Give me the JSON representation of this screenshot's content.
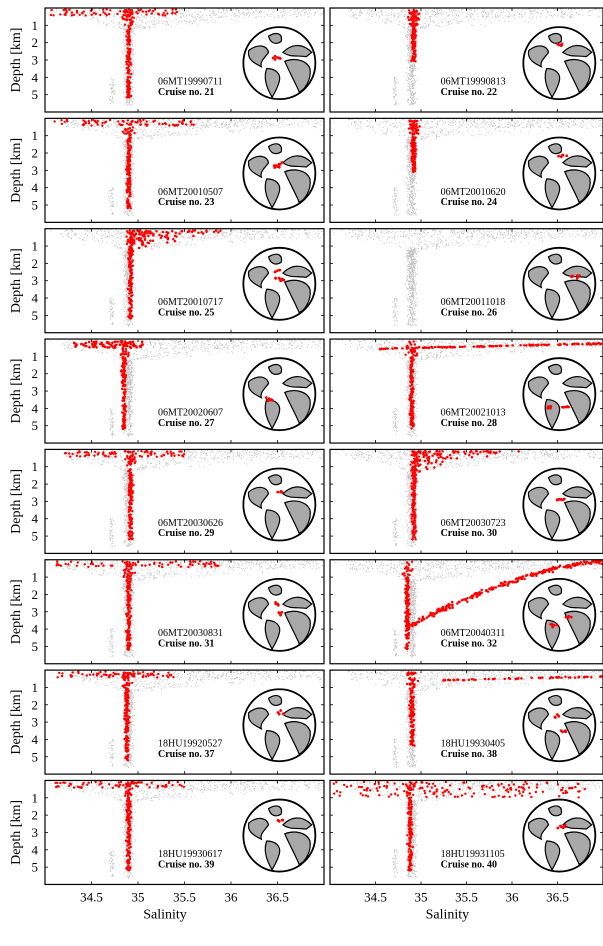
{
  "figure": {
    "xlabel": "Salinity",
    "ylabel": "Depth [km]",
    "x_ticks": [
      "34.5",
      "35",
      "35.5",
      "36",
      "36.5"
    ],
    "y_ticks": [
      "1",
      "2",
      "3",
      "4",
      "5"
    ],
    "background_color": "#c0c0c0",
    "highlight_color": "#ff0000"
  },
  "chart_data": [
    {
      "type": "scatter",
      "xlim": [
        34.0,
        37.0
      ],
      "ylim": [
        0,
        6
      ],
      "x_ticks": [
        34.5,
        35,
        35.5,
        36,
        36.5
      ],
      "y_ticks": [
        1,
        2,
        3,
        4,
        5
      ],
      "xlabel": "",
      "ylabel": "Depth [km]",
      "cruise_id": "06MT19990711",
      "cruise_label": "Cruise no. 21",
      "highlight": "surface_spread",
      "x_range": [
        34.05,
        35.5
      ],
      "core_salinity": 34.9
    },
    {
      "type": "scatter",
      "xlim": [
        34.0,
        37.0
      ],
      "ylim": [
        0,
        6
      ],
      "x_ticks": [
        34.5,
        35,
        35.5,
        36,
        36.5
      ],
      "y_ticks": [
        1,
        2,
        3,
        4,
        5
      ],
      "xlabel": "",
      "ylabel": "",
      "cruise_id": "06MT19990813",
      "cruise_label": "Cruise no. 22",
      "highlight": "narrow",
      "x_range": [
        34.85,
        35.2
      ],
      "core_salinity": 34.92
    },
    {
      "type": "scatter",
      "xlim": [
        34.0,
        37.0
      ],
      "ylim": [
        0,
        6
      ],
      "x_ticks": [
        34.5,
        35,
        35.5,
        36,
        36.5
      ],
      "y_ticks": [
        1,
        2,
        3,
        4,
        5
      ],
      "xlabel": "",
      "ylabel": "Depth [km]",
      "cruise_id": "06MT20010507",
      "cruise_label": "Cruise no. 23",
      "highlight": "surface_spread",
      "x_range": [
        34.1,
        35.6
      ],
      "core_salinity": 34.9
    },
    {
      "type": "scatter",
      "xlim": [
        34.0,
        37.0
      ],
      "ylim": [
        0,
        6
      ],
      "x_ticks": [
        34.5,
        35,
        35.5,
        36,
        36.5
      ],
      "y_ticks": [
        1,
        2,
        3,
        4,
        5
      ],
      "xlabel": "",
      "ylabel": "",
      "cruise_id": "06MT20010620",
      "cruise_label": "Cruise no. 24",
      "highlight": "narrow",
      "x_range": [
        34.85,
        35.15
      ],
      "core_salinity": 34.92
    },
    {
      "type": "scatter",
      "xlim": [
        34.0,
        37.0
      ],
      "ylim": [
        0,
        6
      ],
      "x_ticks": [
        34.5,
        35,
        35.5,
        36,
        36.5
      ],
      "y_ticks": [
        1,
        2,
        3,
        4,
        5
      ],
      "xlabel": "",
      "ylabel": "Depth [km]",
      "cruise_id": "06MT20010717",
      "cruise_label": "Cruise no. 25",
      "highlight": "upper_fan",
      "x_range": [
        34.8,
        36.0
      ],
      "core_salinity": 34.92
    },
    {
      "type": "scatter",
      "xlim": [
        34.0,
        37.0
      ],
      "ylim": [
        0,
        6
      ],
      "x_ticks": [
        34.5,
        35,
        35.5,
        36,
        36.5
      ],
      "y_ticks": [
        1,
        2,
        3,
        4,
        5
      ],
      "xlabel": "",
      "ylabel": "",
      "cruise_id": "06MT20011018",
      "cruise_label": "Cruise no. 26",
      "highlight": "none"
    },
    {
      "type": "scatter",
      "xlim": [
        34.0,
        37.0
      ],
      "ylim": [
        0,
        6
      ],
      "x_ticks": [
        34.5,
        35,
        35.5,
        36,
        36.5
      ],
      "y_ticks": [
        1,
        2,
        3,
        4,
        5
      ],
      "xlabel": "",
      "ylabel": "Depth [km]",
      "cruise_id": "06MT20020607",
      "cruise_label": "Cruise no. 27",
      "highlight": "fresh_tongue",
      "x_range": [
        34.3,
        35.3
      ],
      "core_salinity": 34.85
    },
    {
      "type": "scatter",
      "xlim": [
        34.0,
        37.0
      ],
      "ylim": [
        0,
        6
      ],
      "x_ticks": [
        34.5,
        35,
        35.5,
        36,
        36.5
      ],
      "y_ticks": [
        1,
        2,
        3,
        4,
        5
      ],
      "xlabel": "",
      "ylabel": "",
      "cruise_id": "06MT20021013",
      "cruise_label": "Cruise no. 28",
      "highlight": "salty_surface_line",
      "x_range": [
        34.5,
        37.0
      ],
      "core_salinity": 34.9
    },
    {
      "type": "scatter",
      "xlim": [
        34.0,
        37.0
      ],
      "ylim": [
        0,
        6
      ],
      "x_ticks": [
        34.5,
        35,
        35.5,
        36,
        36.5
      ],
      "y_ticks": [
        1,
        2,
        3,
        4,
        5
      ],
      "xlabel": "",
      "ylabel": "Depth [km]",
      "cruise_id": "06MT20030626",
      "cruise_label": "Cruise no. 29",
      "highlight": "surface_spread",
      "x_range": [
        34.2,
        35.5
      ],
      "core_salinity": 34.92
    },
    {
      "type": "scatter",
      "xlim": [
        34.0,
        37.0
      ],
      "ylim": [
        0,
        6
      ],
      "x_ticks": [
        34.5,
        35,
        35.5,
        36,
        36.5
      ],
      "y_ticks": [
        1,
        2,
        3,
        4,
        5
      ],
      "xlabel": "",
      "ylabel": "",
      "cruise_id": "06MT20030723",
      "cruise_label": "Cruise no. 30",
      "highlight": "upper_fan",
      "x_range": [
        34.6,
        36.1
      ],
      "core_salinity": 34.92
    },
    {
      "type": "scatter",
      "xlim": [
        34.0,
        37.0
      ],
      "ylim": [
        0,
        6
      ],
      "x_ticks": [
        34.5,
        35,
        35.5,
        36,
        36.5
      ],
      "y_ticks": [
        1,
        2,
        3,
        4,
        5
      ],
      "xlabel": "",
      "ylabel": "Depth [km]",
      "cruise_id": "06MT20030831",
      "cruise_label": "Cruise no. 31",
      "highlight": "surface_spread",
      "x_range": [
        34.1,
        35.9
      ],
      "core_salinity": 34.9
    },
    {
      "type": "scatter",
      "xlim": [
        34.0,
        37.0
      ],
      "ylim": [
        0,
        6
      ],
      "x_ticks": [
        34.5,
        35,
        35.5,
        36,
        36.5
      ],
      "y_ticks": [
        1,
        2,
        3,
        4,
        5
      ],
      "xlabel": "",
      "ylabel": "",
      "cruise_id": "06MT20040311",
      "cruise_label": "Cruise no. 32",
      "highlight": "thermocline_arc",
      "x_range": [
        34.8,
        37.0
      ],
      "core_salinity": 34.85
    },
    {
      "type": "scatter",
      "xlim": [
        34.0,
        37.0
      ],
      "ylim": [
        0,
        6
      ],
      "x_ticks": [
        34.5,
        35,
        35.5,
        36,
        36.5
      ],
      "y_ticks": [
        1,
        2,
        3,
        4,
        5
      ],
      "xlabel": "",
      "ylabel": "Depth [km]",
      "cruise_id": "18HU19920527",
      "cruise_label": "Cruise no. 37",
      "highlight": "surface_spread",
      "x_range": [
        34.1,
        35.4
      ],
      "core_salinity": 34.88
    },
    {
      "type": "scatter",
      "xlim": [
        34.0,
        37.0
      ],
      "ylim": [
        0,
        6
      ],
      "x_ticks": [
        34.5,
        35,
        35.5,
        36,
        36.5
      ],
      "y_ticks": [
        1,
        2,
        3,
        4,
        5
      ],
      "xlabel": "",
      "ylabel": "",
      "cruise_id": "18HU19930405",
      "cruise_label": "Cruise no. 38",
      "highlight": "salty_surface_line_sparse",
      "x_range": [
        35.1,
        37.0
      ],
      "core_salinity": 34.9
    },
    {
      "type": "scatter",
      "xlim": [
        34.0,
        37.0
      ],
      "ylim": [
        0,
        6
      ],
      "x_ticks": [
        34.5,
        35,
        35.5,
        36,
        36.5
      ],
      "y_ticks": [
        1,
        2,
        3,
        4,
        5
      ],
      "xlabel": "Salinity",
      "ylabel": "Depth [km]",
      "cruise_id": "18HU19930617",
      "cruise_label": "Cruise no. 39",
      "highlight": "surface_spread",
      "x_range": [
        34.1,
        35.5
      ],
      "core_salinity": 34.9
    },
    {
      "type": "scatter",
      "xlim": [
        34.0,
        37.0
      ],
      "ylim": [
        0,
        6
      ],
      "x_ticks": [
        34.5,
        35,
        35.5,
        36,
        36.5
      ],
      "y_ticks": [
        1,
        2,
        3,
        4,
        5
      ],
      "xlabel": "Salinity",
      "ylabel": "",
      "cruise_id": "18HU19931105",
      "cruise_label": "Cruise no. 40",
      "highlight": "dense_spread",
      "x_range": [
        34.0,
        36.8
      ],
      "core_salinity": 34.88
    }
  ]
}
